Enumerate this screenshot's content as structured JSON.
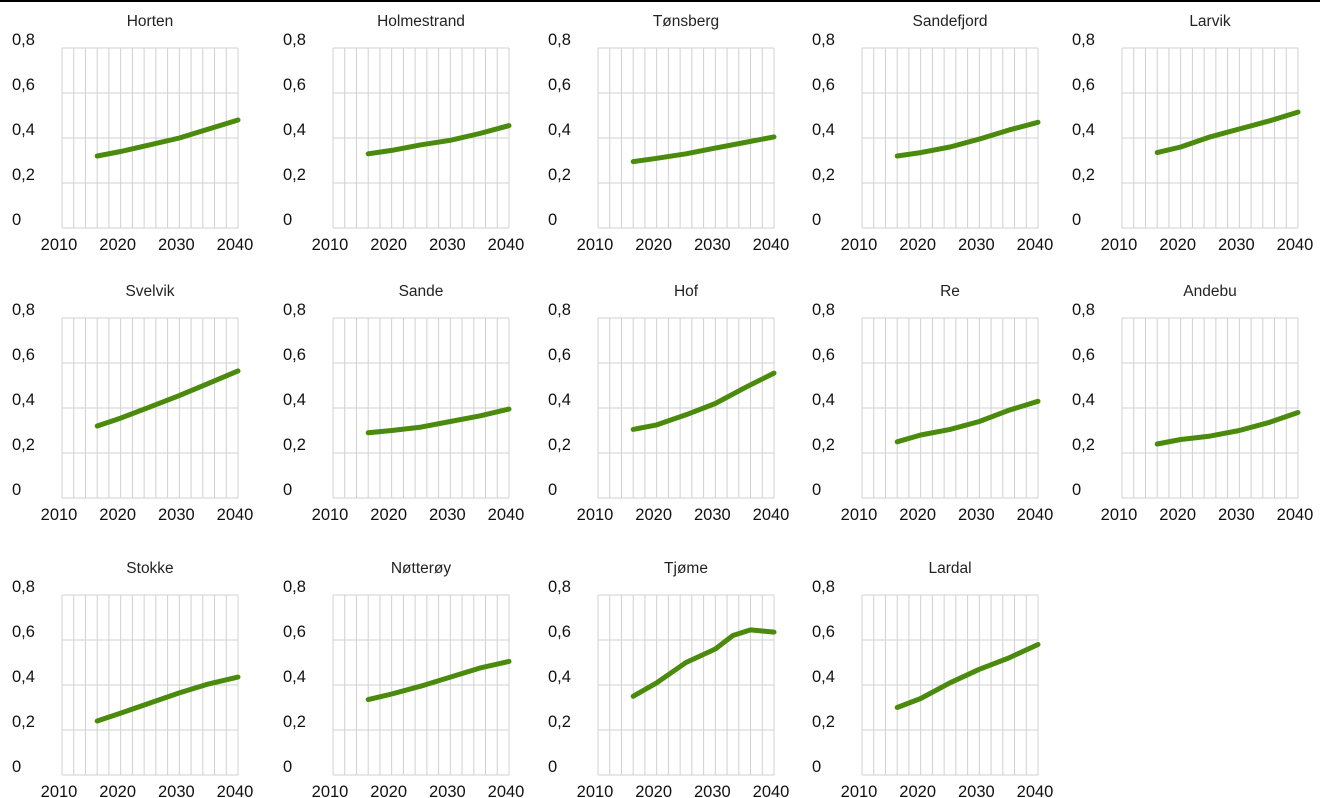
{
  "chart_data": [
    {
      "type": "line",
      "title": "Horten",
      "x": [
        2016,
        2020,
        2025,
        2030,
        2035,
        2040
      ],
      "values": [
        0.32,
        0.34,
        0.37,
        0.4,
        0.44,
        0.48
      ],
      "xlim": [
        2010,
        2040
      ],
      "ylim": [
        0,
        0.8
      ],
      "xticks": [
        "2010",
        "2020",
        "2030",
        "2040"
      ],
      "yticks": [
        "0",
        "0,2",
        "0,4",
        "0,6",
        "0,8"
      ],
      "grid": true
    },
    {
      "type": "line",
      "title": "Holmestrand",
      "x": [
        2016,
        2020,
        2025,
        2030,
        2035,
        2040
      ],
      "values": [
        0.33,
        0.345,
        0.37,
        0.39,
        0.42,
        0.455
      ],
      "xlim": [
        2010,
        2040
      ],
      "ylim": [
        0,
        0.8
      ],
      "xticks": [
        "2010",
        "2020",
        "2030",
        "2040"
      ],
      "yticks": [
        "0",
        "0,2",
        "0,4",
        "0,6",
        "0,8"
      ],
      "grid": true
    },
    {
      "type": "line",
      "title": "Tønsberg",
      "x": [
        2016,
        2020,
        2025,
        2030,
        2035,
        2040
      ],
      "values": [
        0.295,
        0.31,
        0.33,
        0.355,
        0.38,
        0.405
      ],
      "xlim": [
        2010,
        2040
      ],
      "ylim": [
        0,
        0.8
      ],
      "xticks": [
        "2010",
        "2020",
        "2030",
        "2040"
      ],
      "yticks": [
        "0",
        "0,2",
        "0,4",
        "0,6",
        "0,8"
      ],
      "grid": true
    },
    {
      "type": "line",
      "title": "Sandefjord",
      "x": [
        2016,
        2020,
        2025,
        2030,
        2035,
        2040
      ],
      "values": [
        0.32,
        0.335,
        0.36,
        0.395,
        0.435,
        0.47
      ],
      "xlim": [
        2010,
        2040
      ],
      "ylim": [
        0,
        0.8
      ],
      "xticks": [
        "2010",
        "2020",
        "2030",
        "2040"
      ],
      "yticks": [
        "0",
        "0,2",
        "0,4",
        "0,6",
        "0,8"
      ],
      "grid": true
    },
    {
      "type": "line",
      "title": "Larvik",
      "x": [
        2016,
        2020,
        2025,
        2030,
        2035,
        2040
      ],
      "values": [
        0.335,
        0.36,
        0.405,
        0.44,
        0.475,
        0.515
      ],
      "xlim": [
        2010,
        2040
      ],
      "ylim": [
        0,
        0.8
      ],
      "xticks": [
        "2010",
        "2020",
        "2030",
        "2040"
      ],
      "yticks": [
        "0",
        "0,2",
        "0,4",
        "0,6",
        "0,8"
      ],
      "grid": true
    },
    {
      "type": "line",
      "title": "Svelvik",
      "x": [
        2016,
        2020,
        2025,
        2030,
        2035,
        2040
      ],
      "values": [
        0.32,
        0.355,
        0.405,
        0.455,
        0.51,
        0.565
      ],
      "xlim": [
        2010,
        2040
      ],
      "ylim": [
        0,
        0.8
      ],
      "xticks": [
        "2010",
        "2020",
        "2030",
        "2040"
      ],
      "yticks": [
        "0",
        "0,2",
        "0,4",
        "0,6",
        "0,8"
      ],
      "grid": true
    },
    {
      "type": "line",
      "title": "Sande",
      "x": [
        2016,
        2020,
        2025,
        2030,
        2035,
        2040
      ],
      "values": [
        0.29,
        0.3,
        0.315,
        0.34,
        0.365,
        0.395
      ],
      "xlim": [
        2010,
        2040
      ],
      "ylim": [
        0,
        0.8
      ],
      "xticks": [
        "2010",
        "2020",
        "2030",
        "2040"
      ],
      "yticks": [
        "0",
        "0,2",
        "0,4",
        "0,6",
        "0,8"
      ],
      "grid": true
    },
    {
      "type": "line",
      "title": "Hof",
      "x": [
        2016,
        2020,
        2025,
        2030,
        2035,
        2040
      ],
      "values": [
        0.305,
        0.325,
        0.37,
        0.42,
        0.49,
        0.555
      ],
      "xlim": [
        2010,
        2040
      ],
      "ylim": [
        0,
        0.8
      ],
      "xticks": [
        "2010",
        "2020",
        "2030",
        "2040"
      ],
      "yticks": [
        "0",
        "0,2",
        "0,4",
        "0,6",
        "0,8"
      ],
      "grid": true
    },
    {
      "type": "line",
      "title": "Re",
      "x": [
        2016,
        2020,
        2025,
        2030,
        2035,
        2040
      ],
      "values": [
        0.25,
        0.28,
        0.305,
        0.34,
        0.39,
        0.43
      ],
      "xlim": [
        2010,
        2040
      ],
      "ylim": [
        0,
        0.8
      ],
      "xticks": [
        "2010",
        "2020",
        "2030",
        "2040"
      ],
      "yticks": [
        "0",
        "0,2",
        "0,4",
        "0,6",
        "0,8"
      ],
      "grid": true
    },
    {
      "type": "line",
      "title": "Andebu",
      "x": [
        2016,
        2020,
        2025,
        2030,
        2035,
        2040
      ],
      "values": [
        0.24,
        0.26,
        0.275,
        0.3,
        0.335,
        0.38
      ],
      "xlim": [
        2010,
        2040
      ],
      "ylim": [
        0,
        0.8
      ],
      "xticks": [
        "2010",
        "2020",
        "2030",
        "2040"
      ],
      "yticks": [
        "0",
        "0,2",
        "0,4",
        "0,6",
        "0,8"
      ],
      "grid": true
    },
    {
      "type": "line",
      "title": "Stokke",
      "x": [
        2016,
        2020,
        2025,
        2030,
        2035,
        2040
      ],
      "values": [
        0.24,
        0.275,
        0.32,
        0.365,
        0.405,
        0.435
      ],
      "xlim": [
        2010,
        2040
      ],
      "ylim": [
        0,
        0.8
      ],
      "xticks": [
        "2010",
        "2020",
        "2030",
        "2040"
      ],
      "yticks": [
        "0",
        "0,2",
        "0,4",
        "0,6",
        "0,8"
      ],
      "grid": true
    },
    {
      "type": "line",
      "title": "Nøtterøy",
      "x": [
        2016,
        2020,
        2025,
        2030,
        2035,
        2040
      ],
      "values": [
        0.335,
        0.36,
        0.395,
        0.435,
        0.475,
        0.505
      ],
      "xlim": [
        2010,
        2040
      ],
      "ylim": [
        0,
        0.8
      ],
      "xticks": [
        "2010",
        "2020",
        "2030",
        "2040"
      ],
      "yticks": [
        "0",
        "0,2",
        "0,4",
        "0,6",
        "0,8"
      ],
      "grid": true
    },
    {
      "type": "line",
      "title": "Tjøme",
      "x": [
        2016,
        2020,
        2025,
        2030,
        2033,
        2036,
        2038,
        2040
      ],
      "values": [
        0.35,
        0.41,
        0.5,
        0.56,
        0.62,
        0.645,
        0.64,
        0.635
      ],
      "xlim": [
        2010,
        2040
      ],
      "ylim": [
        0,
        0.8
      ],
      "xticks": [
        "2010",
        "2020",
        "2030",
        "2040"
      ],
      "yticks": [
        "0",
        "0,2",
        "0,4",
        "0,6",
        "0,8"
      ],
      "grid": true
    },
    {
      "type": "line",
      "title": "Lardal",
      "x": [
        2016,
        2020,
        2025,
        2030,
        2035,
        2040
      ],
      "values": [
        0.3,
        0.34,
        0.41,
        0.47,
        0.52,
        0.58
      ],
      "xlim": [
        2010,
        2040
      ],
      "ylim": [
        0,
        0.8
      ],
      "xticks": [
        "2010",
        "2020",
        "2030",
        "2040"
      ],
      "yticks": [
        "0",
        "0,2",
        "0,4",
        "0,6",
        "0,8"
      ],
      "grid": true
    }
  ],
  "colors": {
    "line": "#4a8a0c",
    "grid": "#d0d0d0",
    "text": "#111111"
  }
}
